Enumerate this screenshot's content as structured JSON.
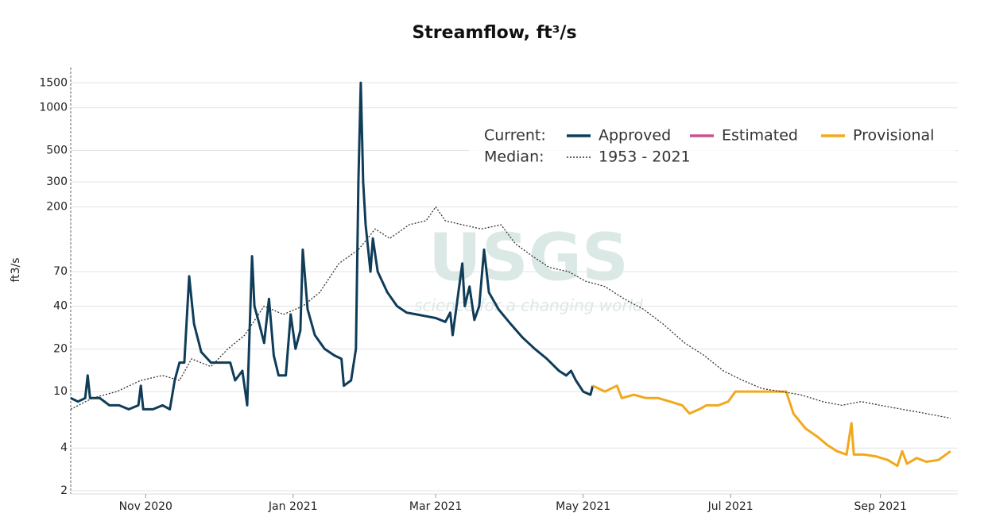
{
  "chart_data": {
    "type": "line",
    "title": "Streamflow, ft³/s",
    "y_label": "ft3/s",
    "y_log": true,
    "grid": true,
    "watermark": {
      "logo": "USGS",
      "tagline": "science for a changing world"
    },
    "legend": {
      "current_label": "Current:",
      "median_label": "Median:"
    },
    "xlim": [
      "2020-10-01",
      "2021-10-03"
    ],
    "xticks": [
      {
        "value": "2020-11",
        "label": "Nov 2020"
      },
      {
        "value": "2021-01",
        "label": "Jan 2021"
      },
      {
        "value": "2021-03",
        "label": "Mar 2021"
      },
      {
        "value": "2021-05",
        "label": "May 2021"
      },
      {
        "value": "2021-07",
        "label": "Jul 2021"
      },
      {
        "value": "2021-09",
        "label": "Sep 2021"
      }
    ],
    "ylim": [
      1.9,
      1850
    ],
    "yticks": [
      2,
      4,
      10,
      20,
      40,
      70,
      200,
      300,
      500,
      1000,
      1500
    ],
    "series": [
      {
        "name": "Approved",
        "color": "#0f3c58",
        "x": [
          "2020-10-01",
          "2020-10-04",
          "2020-10-07",
          "2020-10-08",
          "2020-10-09",
          "2020-10-13",
          "2020-10-17",
          "2020-10-21",
          "2020-10-25",
          "2020-10-29",
          "2020-10-30",
          "2020-10-31",
          "2020-11-04",
          "2020-11-08",
          "2020-11-11",
          "2020-11-13",
          "2020-11-15",
          "2020-11-17",
          "2020-11-19",
          "2020-11-21",
          "2020-11-24",
          "2020-11-28",
          "2020-12-02",
          "2020-12-06",
          "2020-12-08",
          "2020-12-11",
          "2020-12-13",
          "2020-12-15",
          "2020-12-16",
          "2020-12-18",
          "2020-12-20",
          "2020-12-22",
          "2020-12-24",
          "2020-12-26",
          "2020-12-29",
          "2020-12-31",
          "2021-01-02",
          "2021-01-04",
          "2021-01-05",
          "2021-01-07",
          "2021-01-10",
          "2021-01-14",
          "2021-01-18",
          "2021-01-21",
          "2021-01-22",
          "2021-01-25",
          "2021-01-27",
          "2021-01-28",
          "2021-01-29",
          "2021-01-30",
          "2021-01-31",
          "2021-02-02",
          "2021-02-03",
          "2021-02-05",
          "2021-02-09",
          "2021-02-13",
          "2021-02-17",
          "2021-02-21",
          "2021-02-25",
          "2021-03-01",
          "2021-03-05",
          "2021-03-07",
          "2021-03-08",
          "2021-03-12",
          "2021-03-13",
          "2021-03-15",
          "2021-03-17",
          "2021-03-19",
          "2021-03-21",
          "2021-03-23",
          "2021-03-27",
          "2021-04-01",
          "2021-04-06",
          "2021-04-11",
          "2021-04-16",
          "2021-04-21",
          "2021-04-24",
          "2021-04-26",
          "2021-04-28",
          "2021-05-01",
          "2021-05-04",
          "2021-05-05"
        ],
        "values": [
          9,
          8.5,
          9,
          13,
          9,
          9,
          8,
          8,
          7.5,
          8,
          11,
          7.5,
          7.5,
          8,
          7.5,
          12,
          16,
          16,
          65,
          30,
          19,
          16,
          16,
          16,
          12,
          14,
          8,
          90,
          40,
          30,
          22,
          45,
          18,
          13,
          13,
          35,
          20,
          27,
          100,
          38,
          25,
          20,
          18,
          17,
          11,
          12,
          20,
          300,
          1500,
          300,
          150,
          70,
          120,
          70,
          50,
          40,
          36,
          35,
          34,
          33,
          31,
          36,
          25,
          80,
          40,
          55,
          32,
          40,
          100,
          50,
          38,
          30,
          24,
          20,
          17,
          14,
          13,
          14,
          12,
          10,
          9.5,
          11
        ]
      },
      {
        "name": "Estimated",
        "color": "#c8528f",
        "x": [],
        "values": []
      },
      {
        "name": "Provisional",
        "color": "#f2a81d",
        "x": [
          "2021-05-05",
          "2021-05-10",
          "2021-05-15",
          "2021-05-17",
          "2021-05-22",
          "2021-05-27",
          "2021-06-01",
          "2021-06-06",
          "2021-06-11",
          "2021-06-14",
          "2021-06-18",
          "2021-06-21",
          "2021-06-26",
          "2021-06-30",
          "2021-07-03",
          "2021-07-10",
          "2021-07-17",
          "2021-07-24",
          "2021-07-27",
          "2021-08-01",
          "2021-08-06",
          "2021-08-10",
          "2021-08-14",
          "2021-08-18",
          "2021-08-20",
          "2021-08-21",
          "2021-08-25",
          "2021-08-30",
          "2021-09-04",
          "2021-09-08",
          "2021-09-10",
          "2021-09-12",
          "2021-09-16",
          "2021-09-20",
          "2021-09-25",
          "2021-09-30"
        ],
        "values": [
          11,
          10,
          11,
          9,
          9.5,
          9,
          9,
          8.5,
          8,
          7,
          7.5,
          8,
          8,
          8.5,
          10,
          10,
          10,
          10,
          7,
          5.5,
          4.8,
          4.2,
          3.8,
          3.6,
          6,
          3.6,
          3.6,
          3.5,
          3.3,
          3,
          3.8,
          3.1,
          3.4,
          3.2,
          3.3,
          3.8
        ]
      },
      {
        "name": "1953 - 2021",
        "color": "#333333",
        "dash": "dot",
        "x": [
          "2020-10-01",
          "2020-10-10",
          "2020-10-20",
          "2020-10-30",
          "2020-11-08",
          "2020-11-15",
          "2020-11-20",
          "2020-11-28",
          "2020-12-05",
          "2020-12-12",
          "2020-12-20",
          "2020-12-28",
          "2021-01-05",
          "2021-01-12",
          "2021-01-20",
          "2021-01-28",
          "2021-02-04",
          "2021-02-10",
          "2021-02-18",
          "2021-02-25",
          "2021-03-01",
          "2021-03-05",
          "2021-03-12",
          "2021-03-20",
          "2021-03-28",
          "2021-04-03",
          "2021-04-10",
          "2021-04-17",
          "2021-04-25",
          "2021-05-02",
          "2021-05-10",
          "2021-05-18",
          "2021-05-26",
          "2021-06-03",
          "2021-06-12",
          "2021-06-20",
          "2021-06-28",
          "2021-07-06",
          "2021-07-14",
          "2021-07-22",
          "2021-07-30",
          "2021-08-08",
          "2021-08-16",
          "2021-08-24",
          "2021-09-01",
          "2021-09-10",
          "2021-09-20",
          "2021-09-30"
        ],
        "values": [
          7.5,
          9,
          10,
          12,
          13,
          12,
          17,
          15,
          20,
          25,
          40,
          35,
          40,
          50,
          80,
          100,
          140,
          120,
          150,
          160,
          200,
          160,
          150,
          140,
          150,
          110,
          90,
          75,
          70,
          60,
          55,
          45,
          38,
          30,
          22,
          18,
          14,
          12,
          10.5,
          10,
          9.5,
          8.5,
          8,
          8.5,
          8,
          7.5,
          7,
          6.5
        ]
      }
    ]
  }
}
